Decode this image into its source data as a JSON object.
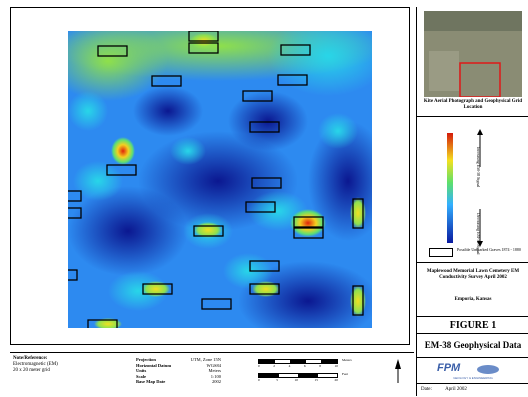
{
  "sidebar": {
    "photo_caption": "Kite Aerial Photograph and Geophysical Grid Location",
    "legend_increasing": "Increasing EM-38 Signal",
    "legend_decreasing": "Decreasing EM-38 Signal",
    "legend_box_label": "Possible Unmarked Graves 1874 - 1880",
    "project_title": "Maplewood Memorial Lawn Cemetery EM Conductivity Survey April 2002",
    "location": "Emporia, Kansas",
    "figure_label": "FIGURE 1",
    "figure_title": "EM-38 Geophysical Data",
    "logo_text": "FPM",
    "logo_sub": "GEOLOGY & ENGINEERING",
    "date_label": "Date:",
    "date_value": "April 2002"
  },
  "footer": {
    "note_heading": "Note/Reference:",
    "note_line1": "Electromagnetic (EM)",
    "note_line2": "20 x 20 meter grid",
    "proj_label": "Projection",
    "proj_value": "UTM, Zone 15N",
    "datum_label": "Horizontal Datum",
    "datum_value": "WGS84",
    "units_label": "Units",
    "units_value": "Meters",
    "scale_label": "Scale",
    "scale_value": "1:100",
    "base_label": "Base Map Date",
    "base_value": "2002",
    "scale_ticks": [
      "0",
      "2",
      "4",
      "6",
      "8",
      "10"
    ],
    "scale_ticks2": [
      "0",
      "5",
      "10",
      "15",
      "20"
    ],
    "unit_m": "Meters",
    "unit_ft": "Feet"
  },
  "colors": {
    "low": "#0a1aa0",
    "mid": "#33b0ff",
    "high": "#d41a0a",
    "photo_box": "#e01818"
  }
}
